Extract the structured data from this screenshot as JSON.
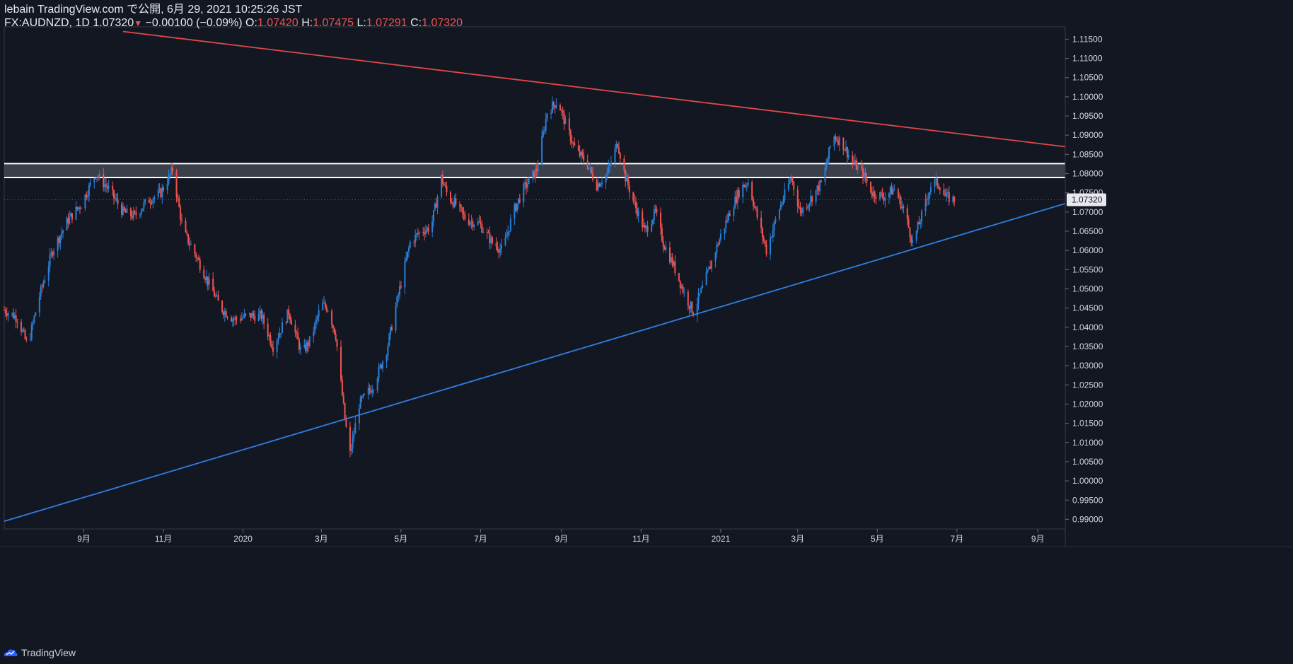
{
  "header": {
    "publish_line": "lebain TradingView.com で公開, 6月 29, 2021 10:25:26 JST",
    "symbol": "FX:AUDNZD, 1D",
    "last": "1.07320",
    "change": "−0.00100 (−0.09%)",
    "o_label": "O:",
    "o_val": "1.07420",
    "h_label": "H:",
    "h_val": "1.07475",
    "l_label": "L:",
    "l_val": "1.07291",
    "c_label": "C:",
    "c_val": "1.07320"
  },
  "footer": {
    "brand": "TradingView"
  },
  "colors": {
    "background": "#131722",
    "up": "#2962ff",
    "up_candle": "#2a7fd4",
    "down": "#ef5350",
    "resistance_trendline": "#e04848",
    "support_trendline": "#2f7fe0",
    "zone_fill": "#4a4d57",
    "zone_border": "#ffffff",
    "grid_text": "#d1d4dc",
    "last_price_label_bg": "#e8e9ee"
  },
  "chart_data": {
    "type": "candlestick",
    "title": "FX:AUDNZD, 1D",
    "xlabel": "",
    "ylabel": "",
    "ylim": [
      0.9875,
      1.1182
    ],
    "x_range": [
      "2019-07-02",
      "2021-09-22"
    ],
    "y_ticks": [
      "1.11500",
      "1.11000",
      "1.10500",
      "1.10000",
      "1.09500",
      "1.09000",
      "1.08500",
      "1.08000",
      "1.07500",
      "1.07000",
      "1.06500",
      "1.06000",
      "1.05500",
      "1.05000",
      "1.04500",
      "1.04000",
      "1.03500",
      "1.03000",
      "1.02500",
      "1.02000",
      "1.01500",
      "1.01000",
      "1.00500",
      "1.00000",
      "0.99500",
      "0.99000"
    ],
    "x_ticks": [
      {
        "date": "2019-09-01",
        "label": "9月"
      },
      {
        "date": "2019-11-01",
        "label": "11月"
      },
      {
        "date": "2020-01-01",
        "label": "2020"
      },
      {
        "date": "2020-03-01",
        "label": "3月"
      },
      {
        "date": "2020-05-01",
        "label": "5月"
      },
      {
        "date": "2020-07-01",
        "label": "7月"
      },
      {
        "date": "2020-09-01",
        "label": "9月"
      },
      {
        "date": "2020-11-01",
        "label": "11月"
      },
      {
        "date": "2021-01-01",
        "label": "2021"
      },
      {
        "date": "2021-03-01",
        "label": "3月"
      },
      {
        "date": "2021-05-01",
        "label": "5月"
      },
      {
        "date": "2021-07-01",
        "label": "7月"
      },
      {
        "date": "2021-09-01",
        "label": "9月"
      }
    ],
    "last_price": {
      "value": 1.0732,
      "label": "1.07320"
    },
    "price_path": [
      [
        "2019-07-02",
        1.0445
      ],
      [
        "2019-07-12",
        1.0425
      ],
      [
        "2019-07-20",
        1.035
      ],
      [
        "2019-07-28",
        1.047
      ],
      [
        "2019-08-08",
        1.06
      ],
      [
        "2019-08-20",
        1.068
      ],
      [
        "2019-08-30",
        1.072
      ],
      [
        "2019-09-10",
        1.08
      ],
      [
        "2019-09-20",
        1.076
      ],
      [
        "2019-10-01",
        1.07
      ],
      [
        "2019-10-10",
        1.069
      ],
      [
        "2019-10-20",
        1.073
      ],
      [
        "2019-10-30",
        1.075
      ],
      [
        "2019-11-08",
        1.081
      ],
      [
        "2019-11-16",
        1.065
      ],
      [
        "2019-11-24",
        1.06
      ],
      [
        "2019-12-05",
        1.052
      ],
      [
        "2019-12-15",
        1.045
      ],
      [
        "2019-12-25",
        1.042
      ],
      [
        "2020-01-05",
        1.043
      ],
      [
        "2020-01-15",
        1.043
      ],
      [
        "2020-01-24",
        1.035
      ],
      [
        "2020-02-05",
        1.044
      ],
      [
        "2020-02-15",
        1.033
      ],
      [
        "2020-02-22",
        1.037
      ],
      [
        "2020-03-01",
        1.046
      ],
      [
        "2020-03-06",
        1.045
      ],
      [
        "2020-03-12",
        1.038
      ],
      [
        "2020-03-19",
        1.016
      ],
      [
        "2020-03-23",
        1.007
      ],
      [
        "2020-03-30",
        1.02
      ],
      [
        "2020-04-10",
        1.025
      ],
      [
        "2020-04-20",
        1.034
      ],
      [
        "2020-04-30",
        1.05
      ],
      [
        "2020-05-08",
        1.062
      ],
      [
        "2020-05-16",
        1.065
      ],
      [
        "2020-05-24",
        1.066
      ],
      [
        "2020-06-01",
        1.079
      ],
      [
        "2020-06-06",
        1.074
      ],
      [
        "2020-06-12",
        1.072
      ],
      [
        "2020-06-20",
        1.068
      ],
      [
        "2020-06-30",
        1.067
      ],
      [
        "2020-07-10",
        1.062
      ],
      [
        "2020-07-18",
        1.06
      ],
      [
        "2020-07-26",
        1.07
      ],
      [
        "2020-08-03",
        1.076
      ],
      [
        "2020-08-13",
        1.081
      ],
      [
        "2020-08-21",
        1.096
      ],
      [
        "2020-08-29",
        1.099
      ],
      [
        "2020-09-05",
        1.092
      ],
      [
        "2020-09-12",
        1.086
      ],
      [
        "2020-09-20",
        1.083
      ],
      [
        "2020-09-28",
        1.077
      ],
      [
        "2020-10-06",
        1.08
      ],
      [
        "2020-10-14",
        1.088
      ],
      [
        "2020-10-20",
        1.079
      ],
      [
        "2020-10-27",
        1.072
      ],
      [
        "2020-11-04",
        1.065
      ],
      [
        "2020-11-12",
        1.07
      ],
      [
        "2020-11-18",
        1.062
      ],
      [
        "2020-11-26",
        1.056
      ],
      [
        "2020-12-05",
        1.048
      ],
      [
        "2020-12-11",
        1.044
      ],
      [
        "2020-12-20",
        1.052
      ],
      [
        "2020-12-30",
        1.062
      ],
      [
        "2021-01-08",
        1.07
      ],
      [
        "2021-01-16",
        1.076
      ],
      [
        "2021-01-22",
        1.078
      ],
      [
        "2021-01-28",
        1.07
      ],
      [
        "2021-02-05",
        1.06
      ],
      [
        "2021-02-14",
        1.07
      ],
      [
        "2021-02-24",
        1.079
      ],
      [
        "2021-03-03",
        1.07
      ],
      [
        "2021-03-10",
        1.073
      ],
      [
        "2021-03-20",
        1.078
      ],
      [
        "2021-03-28",
        1.09
      ],
      [
        "2021-04-04",
        1.088
      ],
      [
        "2021-04-12",
        1.083
      ],
      [
        "2021-04-20",
        1.08
      ],
      [
        "2021-04-27",
        1.075
      ],
      [
        "2021-05-06",
        1.074
      ],
      [
        "2021-05-14",
        1.076
      ],
      [
        "2021-05-22",
        1.07
      ],
      [
        "2021-05-28",
        1.062
      ],
      [
        "2021-06-05",
        1.07
      ],
      [
        "2021-06-12",
        1.078
      ],
      [
        "2021-06-18",
        1.077
      ],
      [
        "2021-06-22",
        1.074
      ],
      [
        "2021-06-29",
        1.0732
      ]
    ],
    "trendlines": [
      {
        "name": "resistance-trendline",
        "start": [
          "2019-10-01",
          1.117
        ],
        "end": [
          "2021-09-22",
          1.087
        ]
      },
      {
        "name": "support-trendline",
        "start": [
          "2019-07-02",
          0.9895
        ],
        "end": [
          "2021-09-22",
          1.0722
        ]
      }
    ],
    "zone": {
      "name": "resistance-zone",
      "low": 1.079,
      "high": 1.0826
    }
  }
}
